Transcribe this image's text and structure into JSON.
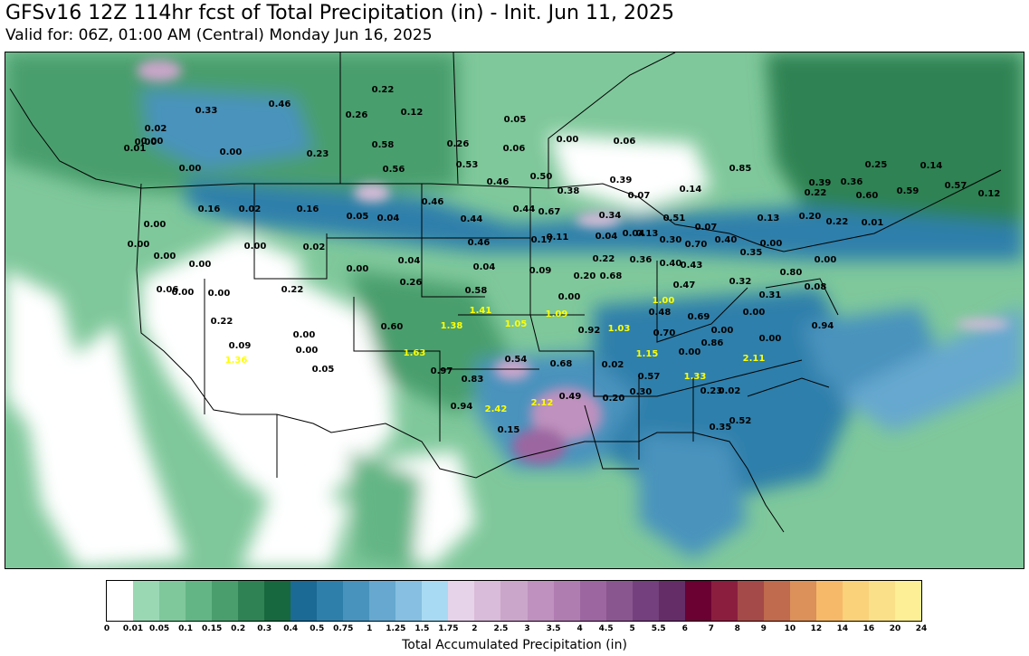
{
  "header": {
    "title": "GFSv16 12Z 114hr fcst of Total Precipitation (in) - Init. Jun 11, 2025",
    "subtitle": "Valid for: 06Z, 01:00 AM (Central) Monday Jun 16, 2025"
  },
  "colorbar": {
    "label": "Total Accumulated Precipitation (in)",
    "ticks": [
      "0",
      "0.01",
      "0.05",
      "0.1",
      "0.15",
      "0.2",
      "0.3",
      "0.4",
      "0.5",
      "0.75",
      "1",
      "1.25",
      "1.5",
      "1.75",
      "2",
      "2.5",
      "3",
      "3.5",
      "4",
      "4.5",
      "5",
      "5.5",
      "6",
      "7",
      "8",
      "9",
      "10",
      "12",
      "14",
      "16",
      "20",
      "24"
    ],
    "colors": [
      "#ffffff",
      "#9ad8b4",
      "#7fc89b",
      "#63b585",
      "#4a9e6d",
      "#2f8253",
      "#17683e",
      "#1b6a96",
      "#2f7fab",
      "#4893bd",
      "#66a8cf",
      "#86bfe1",
      "#a8daf3",
      "#e6d3ea",
      "#d9bcd9",
      "#cba6cb",
      "#be91be",
      "#b07db1",
      "#9c66a0",
      "#8a5690",
      "#74407d",
      "#642d68",
      "#6b0032",
      "#8b1e3f",
      "#a44a48",
      "#c06a4e",
      "#dc905a",
      "#f6b96a",
      "#f9d27a",
      "#fbe08a",
      "#fdef96",
      "#fffda0"
    ]
  },
  "map": {
    "labels": [
      {
        "t": "0.33",
        "c": "b"
      },
      {
        "t": "0.46",
        "c": "b"
      },
      {
        "t": "0.22",
        "c": "b"
      },
      {
        "t": "0.26",
        "c": "b"
      },
      {
        "t": "0.12",
        "c": "b"
      },
      {
        "t": "0.05",
        "c": "b"
      },
      {
        "t": "0.02",
        "c": "b"
      },
      {
        "t": "0.00",
        "c": "b"
      },
      {
        "t": "0.01",
        "c": "b"
      },
      {
        "t": "0.00",
        "c": "b"
      },
      {
        "t": "0.00",
        "c": "b"
      },
      {
        "t": "0.23",
        "c": "b"
      },
      {
        "t": "0.58",
        "c": "b"
      },
      {
        "t": "0.56",
        "c": "b"
      },
      {
        "t": "0.26",
        "c": "b"
      },
      {
        "t": "0.06",
        "c": "b"
      },
      {
        "t": "0.53",
        "c": "b"
      },
      {
        "t": "0.00",
        "c": "b"
      },
      {
        "t": "0.06",
        "c": "b"
      },
      {
        "t": "0.85",
        "c": "b"
      },
      {
        "t": "0.25",
        "c": "b"
      },
      {
        "t": "0.14",
        "c": "b"
      },
      {
        "t": "0.00",
        "c": "b"
      },
      {
        "t": "0.16",
        "c": "b"
      },
      {
        "t": "0.02",
        "c": "b"
      },
      {
        "t": "0.16",
        "c": "b"
      },
      {
        "t": "0.05",
        "c": "b"
      },
      {
        "t": "0.04",
        "c": "b"
      },
      {
        "t": "0.46",
        "c": "b"
      },
      {
        "t": "0.46",
        "c": "b"
      },
      {
        "t": "0.50",
        "c": "b"
      },
      {
        "t": "0.38",
        "c": "b"
      },
      {
        "t": "0.39",
        "c": "b"
      },
      {
        "t": "0.07",
        "c": "b"
      },
      {
        "t": "0.14",
        "c": "b"
      },
      {
        "t": "0.39",
        "c": "b"
      },
      {
        "t": "0.36",
        "c": "b"
      },
      {
        "t": "0.22",
        "c": "b"
      },
      {
        "t": "0.60",
        "c": "b"
      },
      {
        "t": "0.59",
        "c": "b"
      },
      {
        "t": "0.57",
        "c": "b"
      },
      {
        "t": "0.12",
        "c": "b"
      },
      {
        "t": "0.00",
        "c": "b"
      },
      {
        "t": "0.44",
        "c": "b"
      },
      {
        "t": "0.44",
        "c": "b"
      },
      {
        "t": "0.67",
        "c": "b"
      },
      {
        "t": "0.34",
        "c": "b"
      },
      {
        "t": "0.51",
        "c": "b"
      },
      {
        "t": "0.07",
        "c": "b"
      },
      {
        "t": "0.04",
        "c": "b"
      },
      {
        "t": "0.13",
        "c": "b"
      },
      {
        "t": "0.20",
        "c": "b"
      },
      {
        "t": "0.22",
        "c": "b"
      },
      {
        "t": "0.01",
        "c": "b"
      },
      {
        "t": "0.00",
        "c": "b"
      },
      {
        "t": "0.00",
        "c": "b"
      },
      {
        "t": "0.46",
        "c": "b"
      },
      {
        "t": "0.00",
        "c": "b"
      },
      {
        "t": "0.02",
        "c": "b"
      },
      {
        "t": "0.17",
        "c": "b"
      },
      {
        "t": "0.11",
        "c": "b"
      },
      {
        "t": "0.04",
        "c": "b"
      },
      {
        "t": "0.13",
        "c": "b"
      },
      {
        "t": "0.30",
        "c": "b"
      },
      {
        "t": "0.40",
        "c": "b"
      },
      {
        "t": "0.00",
        "c": "b"
      },
      {
        "t": "0.00",
        "c": "b"
      },
      {
        "t": "0.00",
        "c": "b"
      },
      {
        "t": "0.06",
        "c": "b"
      },
      {
        "t": "0.04",
        "c": "b"
      },
      {
        "t": "0.04",
        "c": "b"
      },
      {
        "t": "0.09",
        "c": "b"
      },
      {
        "t": "0.22",
        "c": "b"
      },
      {
        "t": "0.36",
        "c": "b"
      },
      {
        "t": "0.70",
        "c": "b"
      },
      {
        "t": "0.35",
        "c": "b"
      },
      {
        "t": "0.40",
        "c": "b"
      },
      {
        "t": "0.43",
        "c": "b"
      },
      {
        "t": "0.80",
        "c": "b"
      },
      {
        "t": "0.00",
        "c": "b"
      },
      {
        "t": "0.00",
        "c": "b"
      },
      {
        "t": "0.00",
        "c": "b"
      },
      {
        "t": "0.22",
        "c": "b"
      },
      {
        "t": "0.26",
        "c": "b"
      },
      {
        "t": "0.20",
        "c": "b"
      },
      {
        "t": "0.68",
        "c": "b"
      },
      {
        "t": "0.47",
        "c": "b"
      },
      {
        "t": "0.32",
        "c": "b"
      },
      {
        "t": "0.31",
        "c": "b"
      },
      {
        "t": "0.08",
        "c": "b"
      },
      {
        "t": "0.58",
        "c": "b"
      },
      {
        "t": "0.00",
        "c": "b"
      },
      {
        "t": "0.22",
        "c": "b"
      },
      {
        "t": "1.41",
        "c": "y"
      },
      {
        "t": "1.00",
        "c": "y"
      },
      {
        "t": "0.48",
        "c": "b"
      },
      {
        "t": "0.00",
        "c": "b"
      },
      {
        "t": "0.00",
        "c": "b"
      },
      {
        "t": "0.00",
        "c": "b"
      },
      {
        "t": "0.05",
        "c": "b"
      },
      {
        "t": "1.38",
        "c": "y"
      },
      {
        "t": "1.05",
        "c": "y"
      },
      {
        "t": "1.09",
        "c": "y"
      },
      {
        "t": "0.69",
        "c": "b"
      },
      {
        "t": "0.94",
        "c": "b"
      },
      {
        "t": "0.92",
        "c": "b"
      },
      {
        "t": "1.03",
        "c": "y"
      },
      {
        "t": "0.70",
        "c": "b"
      },
      {
        "t": "0.00",
        "c": "b"
      },
      {
        "t": "0.60",
        "c": "b"
      },
      {
        "t": "0.00",
        "c": "b"
      },
      {
        "t": "0.09",
        "c": "b"
      },
      {
        "t": "1.63",
        "c": "y"
      },
      {
        "t": "0.86",
        "c": "b"
      },
      {
        "t": "1.15",
        "c": "y"
      },
      {
        "t": "0.00",
        "c": "b"
      },
      {
        "t": "1.36",
        "c": "y"
      },
      {
        "t": "0.54",
        "c": "b"
      },
      {
        "t": "2.11",
        "c": "y"
      },
      {
        "t": "0.68",
        "c": "b"
      },
      {
        "t": "0.02",
        "c": "b"
      },
      {
        "t": "0.97",
        "c": "b"
      },
      {
        "t": "0.83",
        "c": "b"
      },
      {
        "t": "0.57",
        "c": "b"
      },
      {
        "t": "1.33",
        "c": "y"
      },
      {
        "t": "0.49",
        "c": "b"
      },
      {
        "t": "0.30",
        "c": "b"
      },
      {
        "t": "0.23",
        "c": "b"
      },
      {
        "t": "0.02",
        "c": "b"
      },
      {
        "t": "0.94",
        "c": "b"
      },
      {
        "t": "2.42",
        "c": "y"
      },
      {
        "t": "2.12",
        "c": "y"
      },
      {
        "t": "0.20",
        "c": "b"
      },
      {
        "t": "0.52",
        "c": "b"
      },
      {
        "t": "0.35",
        "c": "b"
      },
      {
        "t": "0.15",
        "c": "b"
      }
    ]
  }
}
